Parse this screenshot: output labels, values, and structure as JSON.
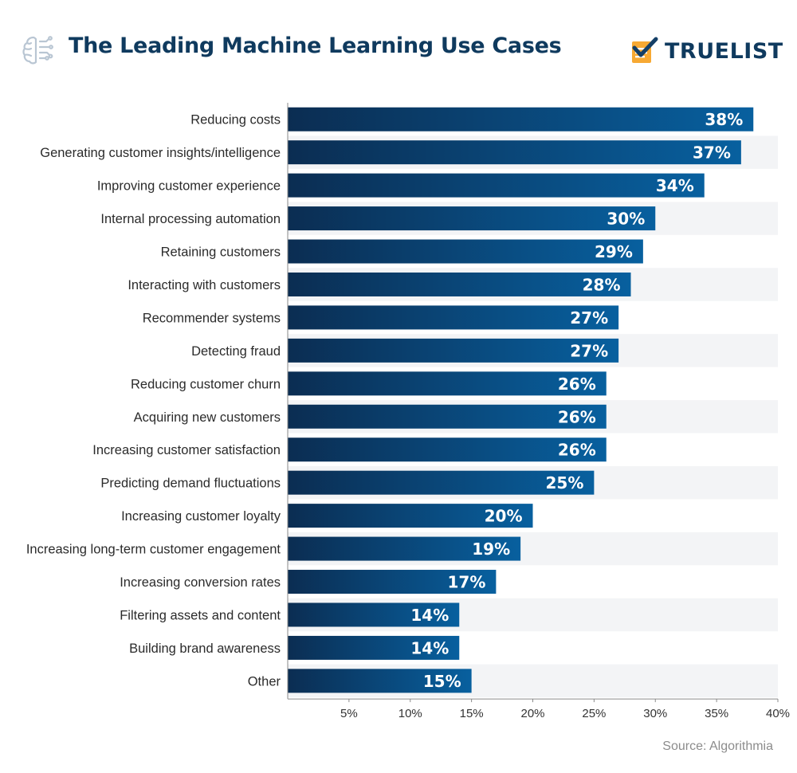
{
  "header": {
    "title": "The Leading Machine Learning Use Cases",
    "logo_text": "TRUELIST",
    "icon": "brain-circuit-icon",
    "logo_icon": "checkmark-notepad-icon"
  },
  "source": "Source: Algorithmia",
  "colors": {
    "bar_dark": "#0b2d52",
    "bar_light": "#08609f",
    "stripe": "#f3f4f6",
    "title": "#0f3a5e",
    "logo_orange": "#f7a933",
    "logo_check": "#143f67"
  },
  "chart_data": {
    "type": "bar",
    "orientation": "horizontal",
    "title": "The Leading Machine Learning Use Cases",
    "categories": [
      "Reducing costs",
      "Generating customer insights/intelligence",
      "Improving customer experience",
      "Internal processing automation",
      "Retaining customers",
      "Interacting with customers",
      "Recommender systems",
      "Detecting fraud",
      "Reducing customer churn",
      "Acquiring new customers",
      "Increasing customer satisfaction",
      "Predicting demand fluctuations",
      "Increasing customer loyalty",
      "Increasing long-term customer engagement",
      "Increasing conversion rates",
      "Filtering assets and content",
      "Building brand awareness",
      "Other"
    ],
    "values": [
      38,
      37,
      34,
      30,
      29,
      28,
      27,
      27,
      26,
      26,
      26,
      25,
      20,
      19,
      17,
      14,
      14,
      15
    ],
    "value_labels": [
      "38%",
      "37%",
      "34%",
      "30%",
      "29%",
      "28%",
      "27%",
      "27%",
      "26%",
      "26%",
      "26%",
      "25%",
      "20%",
      "19%",
      "17%",
      "14%",
      "14%",
      "15%"
    ],
    "xlim": [
      0,
      40
    ],
    "xticks": [
      5,
      10,
      15,
      20,
      25,
      30,
      35,
      40
    ],
    "xtick_labels": [
      "5%",
      "10%",
      "15%",
      "20%",
      "25%",
      "30%",
      "35%",
      "40%"
    ],
    "xlabel": "",
    "ylabel": "",
    "grid": false,
    "legend": "none"
  }
}
